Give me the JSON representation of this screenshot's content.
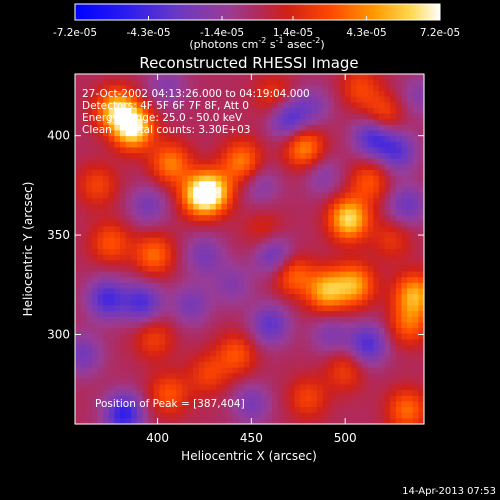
{
  "chart_data": {
    "type": "heatmap",
    "title": "Reconstructed RHESSI Image",
    "xlabel": "Heliocentric X (arcsec)",
    "ylabel": "Heliocentric Y (arcsec)",
    "xlim": [
      356,
      542
    ],
    "ylim": [
      255,
      431
    ],
    "x_ticks": [
      400,
      450,
      500
    ],
    "y_ticks": [
      300,
      350,
      400
    ],
    "colorbar": {
      "range": [
        -7.2e-05,
        7.2e-05
      ],
      "tick_labels": [
        "-7.2e-05",
        "-4.3e-05",
        "-1.4e-05",
        "1.4e-05",
        "4.3e-05",
        "7.2e-05"
      ],
      "units_label": "(photons cm",
      "units_sup1": "-2",
      "units_mid": " s",
      "units_sup2": "-1",
      "units_tail": " asec",
      "units_sup3": "-2",
      "units_close": ")"
    },
    "annotations": [
      "27-Oct-2002 04:13:26.000 to 04:19:04.000",
      "Detectors: 4F 5F 6F 7F 8F, Att 0",
      "Energy Range: 25.0 - 50.0 keV",
      "Clean     Total counts: 3.30E+03"
    ],
    "peak_label": "Position of Peak = [387,404]",
    "sources": [
      {
        "x": 387,
        "y": 404,
        "value": 7e-05
      },
      {
        "x": 378,
        "y": 413,
        "value": 5.5e-05
      },
      {
        "x": 423,
        "y": 370,
        "value": 6e-05
      },
      {
        "x": 430,
        "y": 372,
        "value": 4.5e-05
      },
      {
        "x": 407,
        "y": 386,
        "value": 4e-05
      },
      {
        "x": 445,
        "y": 387,
        "value": 4e-05
      },
      {
        "x": 502,
        "y": 358,
        "value": 6.3e-05
      },
      {
        "x": 478,
        "y": 394,
        "value": 4.5e-05
      },
      {
        "x": 513,
        "y": 377,
        "value": 3e-05
      },
      {
        "x": 490,
        "y": 322,
        "value": 5.2e-05
      },
      {
        "x": 505,
        "y": 325,
        "value": 4.8e-05
      },
      {
        "x": 472,
        "y": 330,
        "value": 3.5e-05
      },
      {
        "x": 537,
        "y": 320,
        "value": 5e-05
      },
      {
        "x": 534,
        "y": 305,
        "value": 3.2e-05
      },
      {
        "x": 398,
        "y": 340,
        "value": 3.6e-05
      },
      {
        "x": 375,
        "y": 346,
        "value": 3e-05
      },
      {
        "x": 368,
        "y": 375,
        "value": 2.5e-05
      },
      {
        "x": 520,
        "y": 410,
        "value": 3.2e-05
      },
      {
        "x": 508,
        "y": 424,
        "value": 2.5e-05
      },
      {
        "x": 462,
        "y": 420,
        "value": 2.2e-05
      },
      {
        "x": 442,
        "y": 290,
        "value": 3e-05
      },
      {
        "x": 427,
        "y": 280,
        "value": 2.4e-05
      },
      {
        "x": 398,
        "y": 298,
        "value": 2.4e-05
      },
      {
        "x": 406,
        "y": 270,
        "value": 3e-05
      },
      {
        "x": 480,
        "y": 268,
        "value": 2.5e-05
      },
      {
        "x": 500,
        "y": 282,
        "value": 2.4e-05
      },
      {
        "x": 533,
        "y": 262,
        "value": 3.6e-05
      },
      {
        "x": 525,
        "y": 348,
        "value": 2e-05
      },
      {
        "x": 457,
        "y": 352,
        "value": 1.8e-05
      },
      {
        "x": 470,
        "y": 408,
        "value": -4e-05
      },
      {
        "x": 515,
        "y": 400,
        "value": -4.5e-05
      },
      {
        "x": 528,
        "y": 392,
        "value": -3.5e-05
      },
      {
        "x": 462,
        "y": 340,
        "value": -3.5e-05
      },
      {
        "x": 533,
        "y": 365,
        "value": -3e-05
      },
      {
        "x": 512,
        "y": 295,
        "value": -4e-05
      },
      {
        "x": 460,
        "y": 305,
        "value": -3.5e-05
      },
      {
        "x": 392,
        "y": 316,
        "value": -4e-05
      },
      {
        "x": 373,
        "y": 318,
        "value": -4.2e-05
      },
      {
        "x": 382,
        "y": 260,
        "value": -5e-05
      },
      {
        "x": 418,
        "y": 315,
        "value": -2.5e-05
      },
      {
        "x": 425,
        "y": 340,
        "value": -2.5e-05
      },
      {
        "x": 440,
        "y": 325,
        "value": -2e-05
      },
      {
        "x": 455,
        "y": 375,
        "value": -2e-05
      },
      {
        "x": 405,
        "y": 425,
        "value": -2e-05
      },
      {
        "x": 395,
        "y": 365,
        "value": -2.5e-05
      },
      {
        "x": 488,
        "y": 380,
        "value": -2e-05
      },
      {
        "x": 492,
        "y": 300,
        "value": -2.2e-05
      },
      {
        "x": 360,
        "y": 290,
        "value": -2.8e-05
      },
      {
        "x": 450,
        "y": 265,
        "value": -2.5e-05
      },
      {
        "x": 483,
        "y": 415,
        "value": -2e-05
      },
      {
        "x": 540,
        "y": 420,
        "value": -2e-05
      }
    ]
  },
  "footer": {
    "timestamp": "14-Apr-2013 07:53"
  }
}
